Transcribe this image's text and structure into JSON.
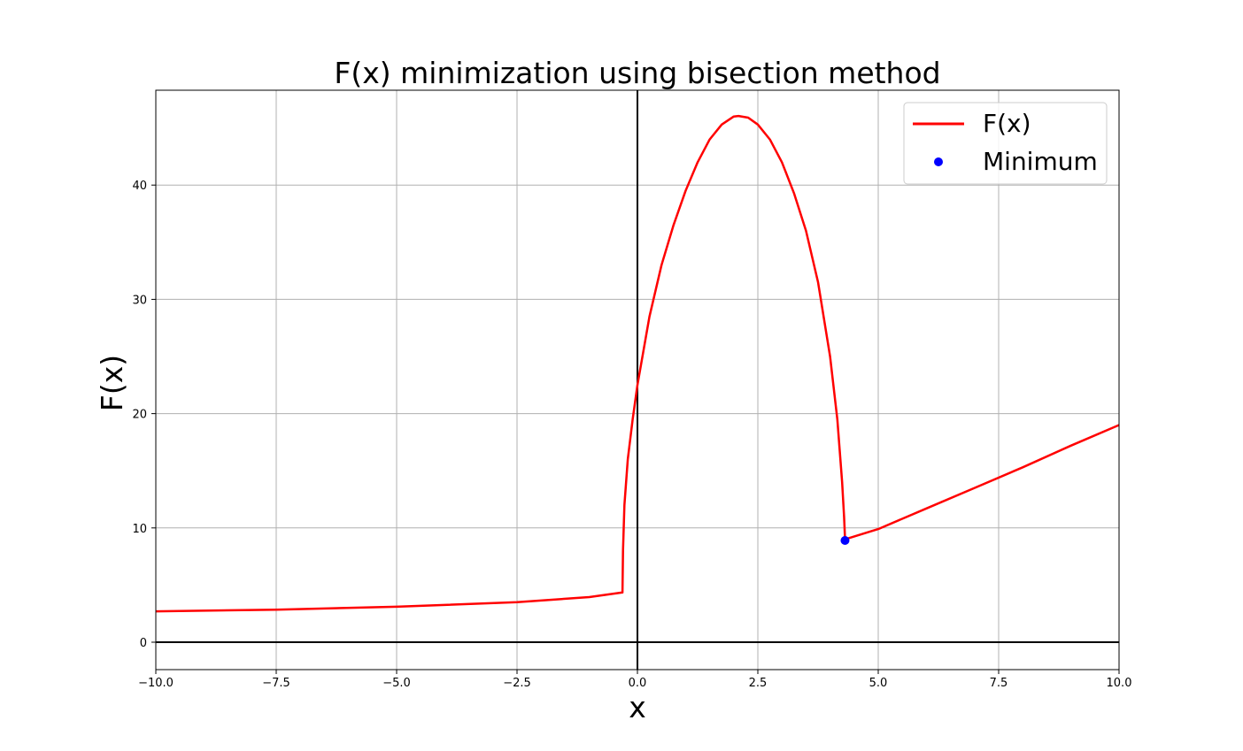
{
  "chart_data": {
    "type": "line",
    "title": "F(x) minimization using bisection method",
    "xlabel": "x",
    "ylabel": "F(x)",
    "xlim": [
      -10,
      10
    ],
    "ylim": [
      -2.4,
      48.3
    ],
    "x_ticks": [
      -10,
      -7.5,
      -5,
      -2.5,
      0,
      2.5,
      5,
      7.5,
      10
    ],
    "x_tick_labels": [
      "−10.0",
      "−7.5",
      "−5.0",
      "−2.5",
      "0.0",
      "2.5",
      "5.0",
      "7.5",
      "10.0"
    ],
    "y_ticks": [
      0,
      10,
      20,
      30,
      40
    ],
    "y_tick_labels": [
      "0",
      "10",
      "20",
      "30",
      "40"
    ],
    "grid": true,
    "legend_position": "top-right",
    "series": [
      {
        "name": "F(x)",
        "color": "#ff0000",
        "points": [
          [
            -10,
            2.7
          ],
          [
            -7.5,
            2.85
          ],
          [
            -5,
            3.1
          ],
          [
            -2.5,
            3.5
          ],
          [
            -1.0,
            3.95
          ],
          [
            -0.31,
            4.35
          ],
          [
            -0.3,
            8.0
          ],
          [
            -0.27,
            12.0
          ],
          [
            -0.2,
            16.0
          ],
          [
            -0.1,
            19.5
          ],
          [
            0.0,
            22.5
          ],
          [
            0.25,
            28.5
          ],
          [
            0.5,
            33.0
          ],
          [
            0.75,
            36.5
          ],
          [
            1.0,
            39.5
          ],
          [
            1.25,
            42.0
          ],
          [
            1.5,
            44.0
          ],
          [
            1.75,
            45.3
          ],
          [
            2.0,
            46.0
          ],
          [
            2.1,
            46.05
          ],
          [
            2.3,
            45.9
          ],
          [
            2.5,
            45.3
          ],
          [
            2.75,
            44.0
          ],
          [
            3.0,
            42.0
          ],
          [
            3.25,
            39.3
          ],
          [
            3.5,
            36.0
          ],
          [
            3.75,
            31.5
          ],
          [
            4.0,
            25.0
          ],
          [
            4.15,
            19.5
          ],
          [
            4.25,
            14.0
          ],
          [
            4.29,
            11.0
          ],
          [
            4.31,
            9.0
          ],
          [
            5.0,
            9.9
          ],
          [
            6.0,
            11.7
          ],
          [
            7.0,
            13.5
          ],
          [
            8.0,
            15.3
          ],
          [
            9.0,
            17.2
          ],
          [
            10.0,
            19.0
          ]
        ]
      },
      {
        "name": "Minimum",
        "color": "#0000ff",
        "points": [
          [
            4.31,
            8.9
          ]
        ]
      }
    ],
    "reference_lines": {
      "x_zero": 0,
      "y_zero": 0
    }
  }
}
